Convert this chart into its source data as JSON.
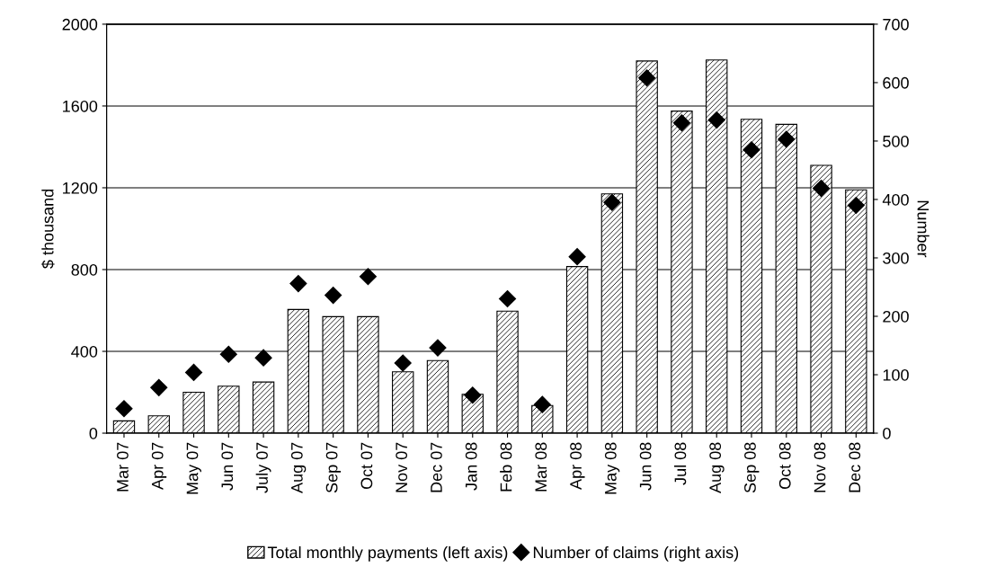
{
  "chart_data": {
    "type": "bar",
    "ylabel": "$ thousand",
    "y2label": "Number",
    "categories": [
      "Mar 07",
      "Apr 07",
      "May 07",
      "Jun 07",
      "July 07",
      "Aug 07",
      "Sep 07",
      "Oct 07",
      "Nov 07",
      "Dec 07",
      "Jan 08",
      "Feb 08",
      "Mar 08",
      "Apr 08",
      "May 08",
      "Jun 08",
      "Jul 08",
      "Aug 08",
      "Sep 08",
      "Oct 08",
      "Nov 08",
      "Dec 08"
    ],
    "series": [
      {
        "name": "Total monthly payments (left axis)",
        "color": "#000000",
        "values": [
          60,
          85,
          200,
          230,
          250,
          605,
          570,
          570,
          300,
          355,
          190,
          597,
          135,
          815,
          1170,
          1820,
          1575,
          1825,
          1535,
          1510,
          1310,
          1190
        ]
      },
      {
        "name": "Number of claims (right axis)",
        "type": "scatter",
        "axis": "y2",
        "color": "#000000",
        "marker": "diamond",
        "values": [
          42,
          78,
          104,
          135,
          129,
          256,
          236,
          268,
          120,
          146,
          65,
          230,
          49,
          302,
          395,
          608,
          531,
          536,
          485,
          503,
          419,
          390
        ]
      }
    ],
    "ylim": [
      0,
      2000
    ],
    "yticks": [
      0,
      400,
      800,
      1200,
      1600,
      2000
    ],
    "y2lim": [
      0,
      700
    ],
    "y2ticks": [
      0,
      100,
      200,
      300,
      400,
      500,
      600,
      700
    ],
    "grid": "y",
    "legend": "bottom"
  }
}
